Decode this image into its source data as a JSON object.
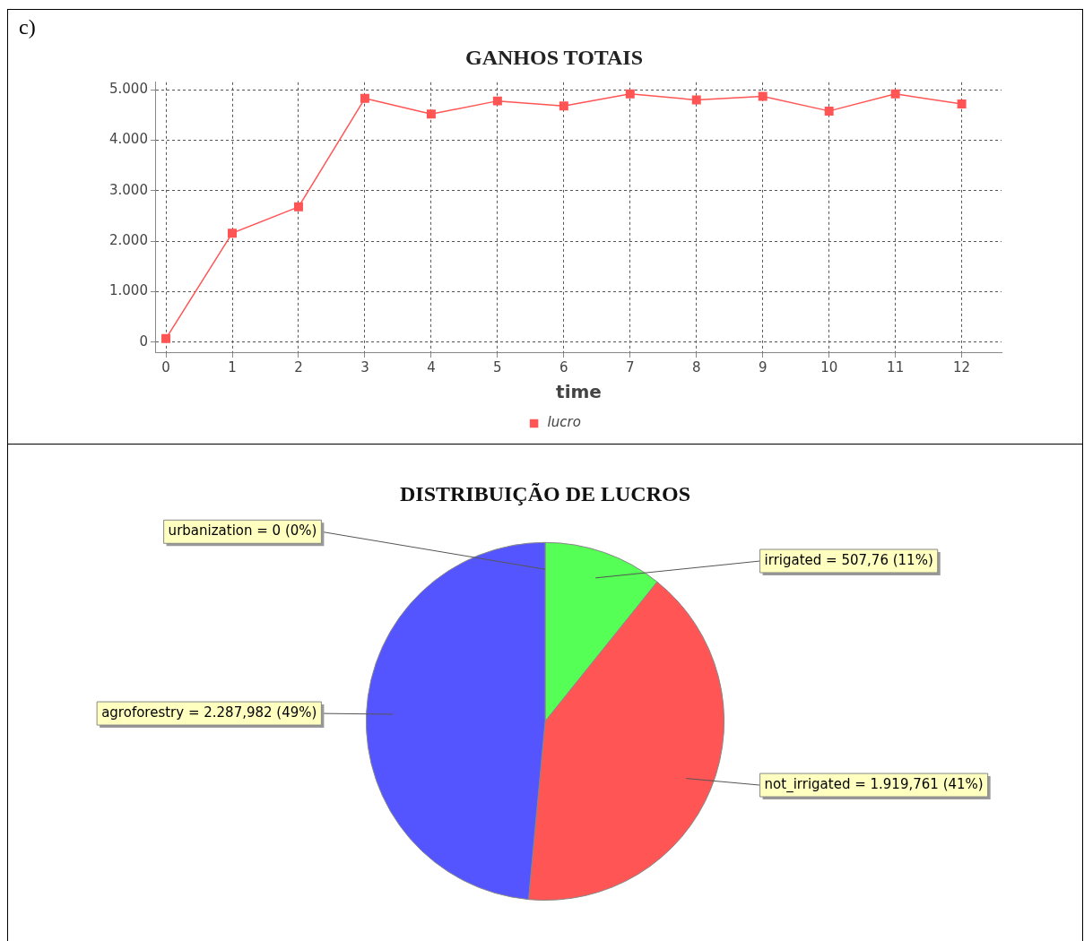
{
  "chart_data": [
    {
      "type": "line",
      "title": "GANHOS TOTAIS",
      "xlabel": "time",
      "annotations": [
        "c)"
      ],
      "x": [
        0,
        1,
        2,
        3,
        4,
        5,
        6,
        7,
        8,
        9,
        10,
        11,
        12
      ],
      "series": [
        {
          "name": "lucro",
          "color": "#ff5555",
          "values": [
            70,
            2160,
            2680,
            4830,
            4520,
            4780,
            4680,
            4920,
            4800,
            4870,
            4580,
            4920,
            4720
          ]
        }
      ],
      "xlim": [
        -0.15,
        12.6
      ],
      "xticks": [
        0,
        1,
        2,
        3,
        4,
        5,
        6,
        7,
        8,
        9,
        10,
        11,
        12
      ],
      "ylim": [
        -200,
        5150
      ],
      "yticks": [
        0,
        {
          "value": 1000,
          "label": "1.000"
        },
        {
          "value": 2000,
          "label": "2.000"
        },
        {
          "value": 3000,
          "label": "3.000"
        },
        {
          "value": 4000,
          "label": "4.000"
        },
        {
          "value": 5000,
          "label": "5.000"
        }
      ],
      "grid": true,
      "legend": "bottom",
      "marker": "square",
      "line_style": "solid"
    },
    {
      "type": "pie",
      "title": "DISTRIBUIÇÃO DE LUCROS",
      "categories": [
        "urbanization",
        "irrigated",
        "not_irrigated",
        "agroforestry"
      ],
      "values": [
        0,
        507.76,
        1919.761,
        2287.982
      ],
      "value_labels": [
        "= 0 (0%)",
        "= 507,76 (11%)",
        "= 1.919,761 (41%)",
        "= 2.287,982 (49%)"
      ],
      "colors": [
        "#ffff55",
        "#55ff55",
        "#ff5555",
        "#5555ff"
      ]
    }
  ]
}
